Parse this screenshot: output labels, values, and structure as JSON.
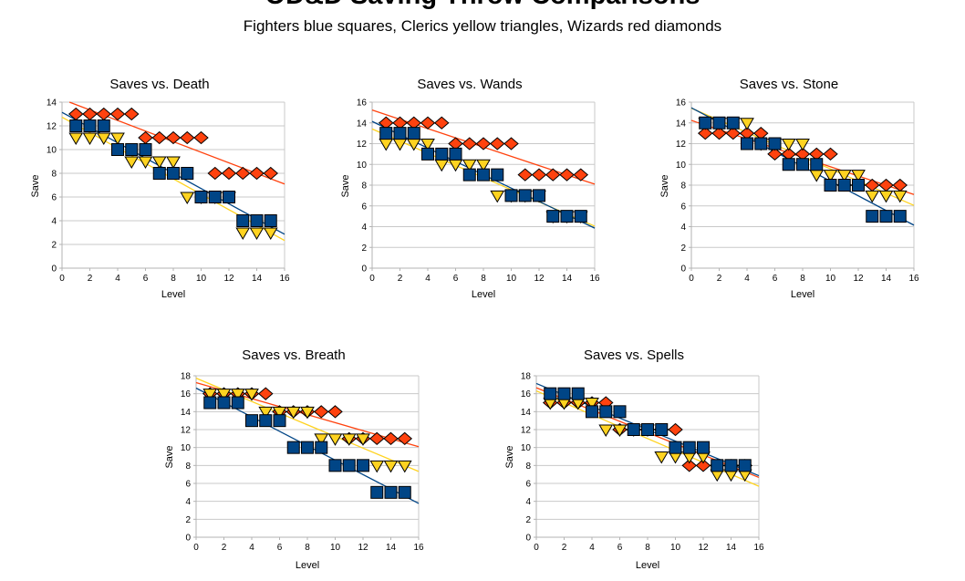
{
  "page": {
    "title": "OD&D Saving Throw Comparisons",
    "subtitle": "Fighters blue squares, Clerics yellow triangles, Wizards red diamonds"
  },
  "colors": {
    "fighters": "#004586",
    "clerics": "#FFD320",
    "wizards": "#FF420E",
    "grid": "#C9C9C9",
    "axis": "#B3B3B3",
    "marker_outline": "#000000",
    "text": "#000000"
  },
  "chart_data": [
    {
      "type": "scatter",
      "title": "Saves vs. Death",
      "xlabel": "Level",
      "ylabel": "Save",
      "xlim": [
        0,
        16
      ],
      "ylim": [
        0,
        14
      ],
      "xtick_step": 2,
      "ytick_step": 2,
      "levels": [
        1,
        2,
        3,
        4,
        5,
        6,
        7,
        8,
        9,
        10,
        11,
        12,
        13,
        14,
        15
      ],
      "trend": "linear",
      "series": [
        {
          "name": "Wizards",
          "marker": "diamond",
          "color": "#FF420E",
          "values": [
            13,
            13,
            13,
            13,
            13,
            11,
            11,
            11,
            11,
            11,
            8,
            8,
            8,
            8,
            8
          ]
        },
        {
          "name": "Clerics",
          "marker": "triangle-down",
          "color": "#FFD320",
          "values": [
            11,
            11,
            11,
            11,
            9,
            9,
            9,
            9,
            6,
            6,
            6,
            6,
            3,
            3,
            3
          ]
        },
        {
          "name": "Fighters",
          "marker": "square",
          "color": "#004586",
          "values": [
            12,
            12,
            12,
            10,
            10,
            10,
            8,
            8,
            8,
            6,
            6,
            6,
            4,
            4,
            4
          ]
        }
      ]
    },
    {
      "type": "scatter",
      "title": "Saves vs. Wands",
      "xlabel": "Level",
      "ylabel": "Save",
      "xlim": [
        0,
        16
      ],
      "ylim": [
        0,
        16
      ],
      "xtick_step": 2,
      "ytick_step": 2,
      "levels": [
        1,
        2,
        3,
        4,
        5,
        6,
        7,
        8,
        9,
        10,
        11,
        12,
        13,
        14,
        15
      ],
      "trend": "linear",
      "series": [
        {
          "name": "Wizards",
          "marker": "diamond",
          "color": "#FF420E",
          "values": [
            14,
            14,
            14,
            14,
            14,
            12,
            12,
            12,
            12,
            12,
            9,
            9,
            9,
            9,
            9
          ]
        },
        {
          "name": "Clerics",
          "marker": "triangle-down",
          "color": "#FFD320",
          "values": [
            12,
            12,
            12,
            12,
            10,
            10,
            10,
            10,
            7,
            7,
            7,
            7,
            5,
            5,
            5
          ]
        },
        {
          "name": "Fighters",
          "marker": "square",
          "color": "#004586",
          "values": [
            13,
            13,
            13,
            11,
            11,
            11,
            9,
            9,
            9,
            7,
            7,
            7,
            5,
            5,
            5
          ]
        }
      ]
    },
    {
      "type": "scatter",
      "title": "Saves vs. Stone",
      "xlabel": "Level",
      "ylabel": "Save",
      "xlim": [
        0,
        16
      ],
      "ylim": [
        0,
        16
      ],
      "xtick_step": 2,
      "ytick_step": 2,
      "levels": [
        1,
        2,
        3,
        4,
        5,
        6,
        7,
        8,
        9,
        10,
        11,
        12,
        13,
        14,
        15
      ],
      "trend": "linear",
      "series": [
        {
          "name": "Wizards",
          "marker": "diamond",
          "color": "#FF420E",
          "values": [
            13,
            13,
            13,
            13,
            13,
            11,
            11,
            11,
            11,
            11,
            8,
            8,
            8,
            8,
            8
          ]
        },
        {
          "name": "Clerics",
          "marker": "triangle-down",
          "color": "#FFD320",
          "values": [
            14,
            14,
            14,
            14,
            12,
            12,
            12,
            12,
            9,
            9,
            9,
            9,
            7,
            7,
            7
          ]
        },
        {
          "name": "Fighters",
          "marker": "square",
          "color": "#004586",
          "values": [
            14,
            14,
            14,
            12,
            12,
            12,
            10,
            10,
            10,
            8,
            8,
            8,
            5,
            5,
            5
          ]
        }
      ]
    },
    {
      "type": "scatter",
      "title": "Saves vs. Breath",
      "xlabel": "Level",
      "ylabel": "Save",
      "xlim": [
        0,
        16
      ],
      "ylim": [
        0,
        18
      ],
      "xtick_step": 2,
      "ytick_step": 2,
      "levels": [
        1,
        2,
        3,
        4,
        5,
        6,
        7,
        8,
        9,
        10,
        11,
        12,
        13,
        14,
        15
      ],
      "trend": "linear",
      "series": [
        {
          "name": "Wizards",
          "marker": "diamond",
          "color": "#FF420E",
          "values": [
            16,
            16,
            16,
            16,
            16,
            14,
            14,
            14,
            14,
            14,
            11,
            11,
            11,
            11,
            11
          ]
        },
        {
          "name": "Clerics",
          "marker": "triangle-down",
          "color": "#FFD320",
          "values": [
            16,
            16,
            16,
            16,
            14,
            14,
            14,
            14,
            11,
            11,
            11,
            11,
            8,
            8,
            8
          ]
        },
        {
          "name": "Fighters",
          "marker": "square",
          "color": "#004586",
          "values": [
            15,
            15,
            15,
            13,
            13,
            13,
            10,
            10,
            10,
            8,
            8,
            8,
            5,
            5,
            5
          ]
        }
      ]
    },
    {
      "type": "scatter",
      "title": "Saves vs. Spells",
      "xlabel": "Level",
      "ylabel": "Save",
      "xlim": [
        0,
        16
      ],
      "ylim": [
        0,
        18
      ],
      "xtick_step": 2,
      "ytick_step": 2,
      "levels": [
        1,
        2,
        3,
        4,
        5,
        6,
        7,
        8,
        9,
        10,
        11,
        12,
        13,
        14,
        15
      ],
      "trend": "linear",
      "series": [
        {
          "name": "Wizards",
          "marker": "diamond",
          "color": "#FF420E",
          "values": [
            15,
            15,
            15,
            15,
            15,
            12,
            12,
            12,
            12,
            12,
            8,
            8,
            8,
            8,
            8
          ]
        },
        {
          "name": "Clerics",
          "marker": "triangle-down",
          "color": "#FFD320",
          "values": [
            15,
            15,
            15,
            15,
            12,
            12,
            12,
            12,
            9,
            9,
            9,
            9,
            7,
            7,
            7
          ]
        },
        {
          "name": "Fighters",
          "marker": "square",
          "color": "#004586",
          "values": [
            16,
            16,
            16,
            14,
            14,
            14,
            12,
            12,
            12,
            10,
            10,
            10,
            8,
            8,
            8
          ]
        }
      ]
    }
  ]
}
